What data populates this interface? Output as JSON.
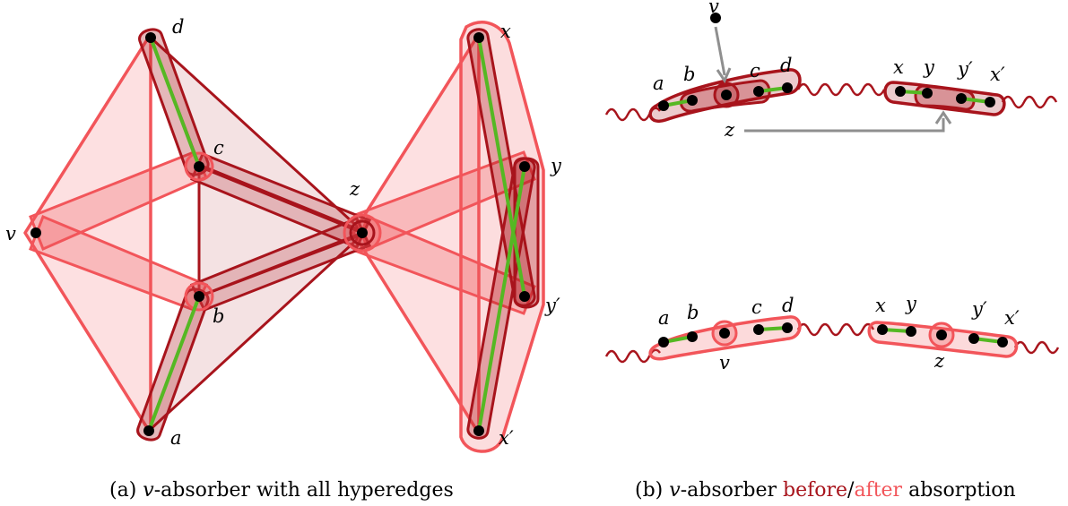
{
  "colors": {
    "before": "#a8141c",
    "after": "#f2555a",
    "matching": "#55b823",
    "arrow": "#8f8f8f",
    "vertex": "#000000"
  },
  "panel_a": {
    "labels": {
      "d": "d",
      "c": "c",
      "v": "v",
      "b": "b",
      "a": "a",
      "z": "z",
      "x": "x",
      "y": "y",
      "yp": "y′",
      "xp": "x′"
    },
    "caption": {
      "prefix": "(a) ",
      "var": "v",
      "rest": "-absorber with all hyperedges"
    }
  },
  "panel_b": {
    "top_labels": {
      "v": "v",
      "a": "a",
      "b": "b",
      "c": "c",
      "d": "d",
      "x": "x",
      "y": "y",
      "yp": "y′",
      "xp": "x′",
      "z": "z"
    },
    "bottom_labels": {
      "a": "a",
      "b": "b",
      "c": "c",
      "d": "d",
      "x": "x",
      "y": "y",
      "yp": "y′",
      "xp": "x′",
      "v": "v",
      "z": "z"
    },
    "caption": {
      "prefix": "(b) ",
      "var": "v",
      "mid": "-absorber ",
      "before": "before",
      "slash": "/",
      "after": "after",
      "rest": " absorption"
    }
  }
}
